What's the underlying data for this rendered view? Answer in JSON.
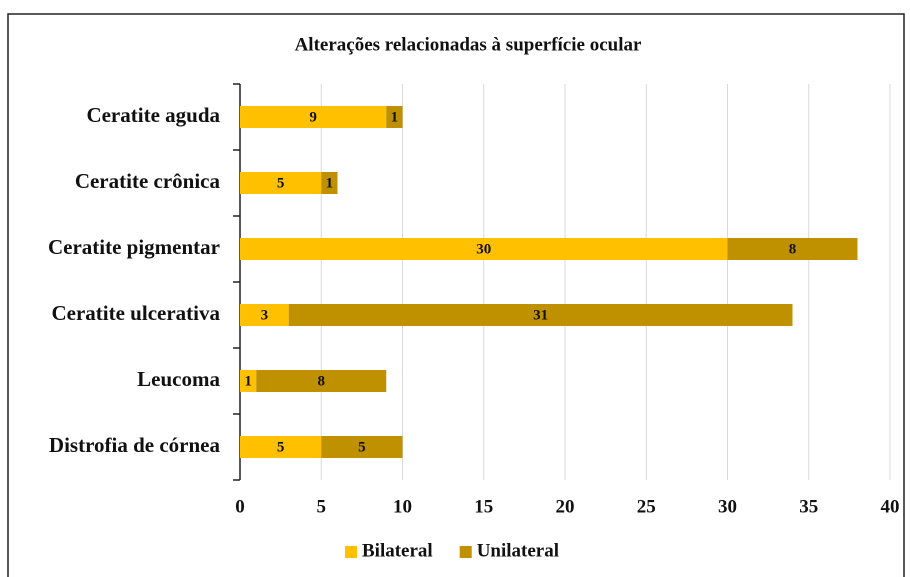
{
  "chart_data": {
    "type": "bar",
    "orientation": "horizontal",
    "stacked": true,
    "title": "Alterações relacionadas à superfície ocular",
    "categories": [
      "Ceratite aguda",
      "Ceratite crônica",
      "Ceratite pigmentar",
      "Ceratite ulcerativa",
      "Leucoma",
      "Distrofia de córnea"
    ],
    "series": [
      {
        "name": "Bilateral",
        "color": "#FFC000",
        "values": [
          9,
          5,
          30,
          3,
          1,
          5
        ]
      },
      {
        "name": "Unilateral",
        "color": "#BF9000",
        "values": [
          1,
          1,
          8,
          31,
          8,
          5
        ]
      }
    ],
    "xlim": [
      0,
      40
    ],
    "xticks": [
      0,
      5,
      10,
      15,
      20,
      25,
      30,
      35,
      40
    ],
    "grid": true,
    "legend": "bottom"
  }
}
